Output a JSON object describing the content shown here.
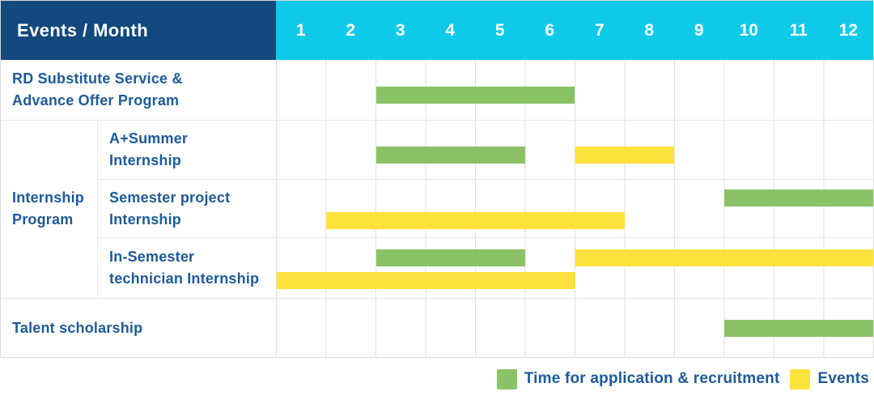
{
  "palette": {
    "navy": "#12497E",
    "cyan": "#0FC9E8",
    "green": "#8AC266",
    "yellow": "#FDE13D",
    "label_blue": "#1D5A99",
    "row_border": "#E6E6E6"
  },
  "header": {
    "title": "Events / Month"
  },
  "group": {
    "label": "Internship Program",
    "label_lines": [
      "Internship",
      "Program"
    ]
  },
  "legend": {
    "items": [
      {
        "series_key": "green",
        "label": "Time for application & recruitment"
      },
      {
        "series_key": "yellow",
        "label": "Events"
      }
    ]
  },
  "chart_data": {
    "type": "bar",
    "subtype": "gantt-table",
    "title": "Events / Month",
    "x_range": [
      1,
      12
    ],
    "months": [
      "1",
      "2",
      "3",
      "4",
      "5",
      "6",
      "7",
      "8",
      "9",
      "10",
      "11",
      "12"
    ],
    "series": [
      {
        "key": "green",
        "name": "Time for application & recruitment",
        "color": "#8AC266"
      },
      {
        "key": "yellow",
        "name": "Events",
        "color": "#FDE13D"
      }
    ],
    "rows": [
      {
        "label": "RD Substitute Service & Advance Offer Program",
        "label_lines": [
          "RD Substitute Service &",
          "Advance Offer Program"
        ],
        "group": null,
        "bars": [
          {
            "series_key": "green",
            "start_month": 3,
            "end_month": 6,
            "lane": "low"
          }
        ]
      },
      {
        "label": "A+Summer Internship",
        "label_lines": [
          "A+Summer",
          "Internship"
        ],
        "group": "Internship Program",
        "bars": [
          {
            "series_key": "green",
            "start_month": 3,
            "end_month": 5,
            "lane": "low"
          },
          {
            "series_key": "yellow",
            "start_month": 7,
            "end_month": 8,
            "lane": "low"
          }
        ]
      },
      {
        "label": "Semester project Internship",
        "label_lines": [
          "Semester project",
          "Internship"
        ],
        "group": "Internship Program",
        "bars": [
          {
            "series_key": "green",
            "start_month": 10,
            "end_month": 12,
            "lane": "upper"
          },
          {
            "series_key": "yellow",
            "start_month": 2,
            "end_month": 7,
            "lane": "lower"
          }
        ]
      },
      {
        "label": "In-Semester technician Internship",
        "label_lines": [
          "In-Semester",
          "technician Internship"
        ],
        "group": "Internship Program",
        "bars": [
          {
            "series_key": "green",
            "start_month": 3,
            "end_month": 5,
            "lane": "upper"
          },
          {
            "series_key": "yellow",
            "start_month": 7,
            "end_month": 12,
            "lane": "upper"
          },
          {
            "series_key": "yellow",
            "start_month": 1,
            "end_month": 6,
            "lane": "lower"
          }
        ]
      },
      {
        "label": "Talent scholarship",
        "label_lines": [
          "Talent scholarship"
        ],
        "group": null,
        "bars": [
          {
            "series_key": "green",
            "start_month": 10,
            "end_month": 12,
            "lane": "center"
          }
        ]
      }
    ]
  }
}
